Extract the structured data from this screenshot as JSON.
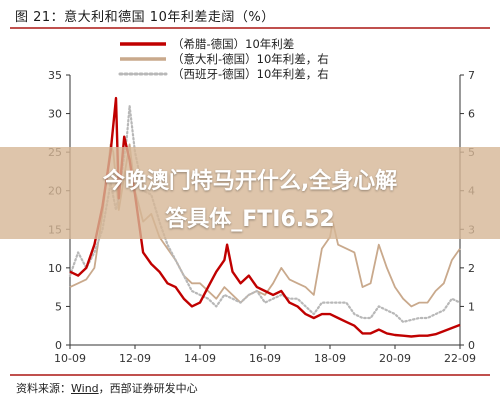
{
  "title": "图 21：意大利和德国 10年利差走阔（%）",
  "banner": {
    "line1": "今晚澳门特马开什么,全身心解",
    "line2": "答具体_FTI6.52"
  },
  "source": {
    "prefix": "资料来源：",
    "name": "Wind",
    "suffix": "，西部证券研发中心"
  },
  "chart_data": {
    "type": "line",
    "x_ticks": [
      "10-09",
      "12-09",
      "14-09",
      "16-09",
      "18-09",
      "20-09",
      "22-09"
    ],
    "y_left": {
      "lim": [
        0,
        35
      ],
      "ticks": [
        0,
        5,
        10,
        15,
        20,
        25,
        30,
        35
      ]
    },
    "y_right": {
      "lim": [
        0,
        7
      ],
      "ticks": [
        0,
        1,
        2,
        3,
        4,
        5,
        6,
        7
      ]
    },
    "grid": false,
    "legend_position": "top",
    "series": [
      {
        "name": "（希腊-德国）10年利差",
        "axis": "left",
        "color": "#c00000",
        "style": "solid",
        "points": [
          [
            "10-09",
            9.5
          ],
          [
            "10-12",
            9.0
          ],
          [
            "11-03",
            10.0
          ],
          [
            "11-06",
            13.0
          ],
          [
            "11-09",
            18.0
          ],
          [
            "11-12",
            25.0
          ],
          [
            "12-02",
            32.0
          ],
          [
            "12-03",
            19.0
          ],
          [
            "12-05",
            27.0
          ],
          [
            "12-07",
            24.0
          ],
          [
            "12-09",
            19.5
          ],
          [
            "12-12",
            12.0
          ],
          [
            "13-03",
            10.5
          ],
          [
            "13-06",
            9.5
          ],
          [
            "13-09",
            8.0
          ],
          [
            "13-12",
            7.5
          ],
          [
            "14-03",
            6.0
          ],
          [
            "14-06",
            5.0
          ],
          [
            "14-09",
            5.5
          ],
          [
            "14-12",
            7.5
          ],
          [
            "15-03",
            9.5
          ],
          [
            "15-06",
            11.0
          ],
          [
            "15-07",
            13.0
          ],
          [
            "15-09",
            9.5
          ],
          [
            "15-12",
            8.0
          ],
          [
            "16-03",
            9.0
          ],
          [
            "16-06",
            7.5
          ],
          [
            "16-09",
            7.0
          ],
          [
            "16-12",
            6.5
          ],
          [
            "17-03",
            7.0
          ],
          [
            "17-06",
            5.5
          ],
          [
            "17-09",
            5.0
          ],
          [
            "17-12",
            4.0
          ],
          [
            "18-03",
            3.5
          ],
          [
            "18-06",
            4.0
          ],
          [
            "18-09",
            4.0
          ],
          [
            "18-12",
            3.5
          ],
          [
            "19-03",
            3.0
          ],
          [
            "19-06",
            2.5
          ],
          [
            "19-09",
            1.5
          ],
          [
            "19-12",
            1.5
          ],
          [
            "20-03",
            2.0
          ],
          [
            "20-06",
            1.5
          ],
          [
            "20-09",
            1.3
          ],
          [
            "20-12",
            1.2
          ],
          [
            "21-03",
            1.1
          ],
          [
            "21-06",
            1.2
          ],
          [
            "21-09",
            1.2
          ],
          [
            "21-12",
            1.4
          ],
          [
            "22-03",
            1.8
          ],
          [
            "22-06",
            2.2
          ],
          [
            "22-09",
            2.6
          ]
        ]
      },
      {
        "name": "（意大利-德国）10年利差，右",
        "axis": "right",
        "color": "#c9a98c",
        "style": "solid",
        "points": [
          [
            "10-09",
            1.5
          ],
          [
            "10-12",
            1.6
          ],
          [
            "11-03",
            1.7
          ],
          [
            "11-06",
            2.0
          ],
          [
            "11-09",
            3.4
          ],
          [
            "11-12",
            5.2
          ],
          [
            "12-01",
            5.0
          ],
          [
            "12-03",
            3.5
          ],
          [
            "12-06",
            4.8
          ],
          [
            "12-07",
            5.2
          ],
          [
            "12-09",
            4.0
          ],
          [
            "12-12",
            3.2
          ],
          [
            "13-03",
            3.4
          ],
          [
            "13-06",
            2.8
          ],
          [
            "13-09",
            2.5
          ],
          [
            "13-12",
            2.2
          ],
          [
            "14-03",
            1.8
          ],
          [
            "14-06",
            1.6
          ],
          [
            "14-09",
            1.6
          ],
          [
            "14-12",
            1.4
          ],
          [
            "15-03",
            1.2
          ],
          [
            "15-06",
            1.5
          ],
          [
            "15-09",
            1.3
          ],
          [
            "15-12",
            1.1
          ],
          [
            "16-03",
            1.3
          ],
          [
            "16-06",
            1.4
          ],
          [
            "16-09",
            1.3
          ],
          [
            "16-12",
            1.6
          ],
          [
            "17-03",
            2.0
          ],
          [
            "17-06",
            1.7
          ],
          [
            "17-09",
            1.6
          ],
          [
            "17-12",
            1.5
          ],
          [
            "18-03",
            1.3
          ],
          [
            "18-06",
            2.5
          ],
          [
            "18-09",
            2.8
          ],
          [
            "18-10",
            3.2
          ],
          [
            "18-12",
            2.6
          ],
          [
            "19-03",
            2.5
          ],
          [
            "19-06",
            2.4
          ],
          [
            "19-09",
            1.5
          ],
          [
            "19-12",
            1.6
          ],
          [
            "20-03",
            2.6
          ],
          [
            "20-06",
            2.0
          ],
          [
            "20-09",
            1.5
          ],
          [
            "20-12",
            1.2
          ],
          [
            "21-03",
            1.0
          ],
          [
            "21-06",
            1.1
          ],
          [
            "21-09",
            1.1
          ],
          [
            "21-12",
            1.4
          ],
          [
            "22-03",
            1.6
          ],
          [
            "22-06",
            2.2
          ],
          [
            "22-09",
            2.5
          ]
        ]
      },
      {
        "name": "（西班牙-德国）10年利差，右",
        "axis": "right",
        "color": "#b8b8b8",
        "style": "dotted",
        "points": [
          [
            "10-09",
            1.8
          ],
          [
            "10-12",
            2.4
          ],
          [
            "11-03",
            2.0
          ],
          [
            "11-06",
            2.4
          ],
          [
            "11-09",
            3.0
          ],
          [
            "11-12",
            4.2
          ],
          [
            "12-02",
            3.5
          ],
          [
            "12-03",
            3.9
          ],
          [
            "12-06",
            5.4
          ],
          [
            "12-07",
            6.2
          ],
          [
            "12-09",
            5.0
          ],
          [
            "12-12",
            4.0
          ],
          [
            "13-03",
            3.9
          ],
          [
            "13-06",
            3.2
          ],
          [
            "13-09",
            2.6
          ],
          [
            "13-12",
            2.2
          ],
          [
            "14-03",
            1.8
          ],
          [
            "14-06",
            1.4
          ],
          [
            "14-09",
            1.3
          ],
          [
            "14-12",
            1.2
          ],
          [
            "15-03",
            1.0
          ],
          [
            "15-06",
            1.3
          ],
          [
            "15-09",
            1.2
          ],
          [
            "15-12",
            1.1
          ],
          [
            "16-03",
            1.3
          ],
          [
            "16-06",
            1.4
          ],
          [
            "16-09",
            1.1
          ],
          [
            "16-12",
            1.2
          ],
          [
            "17-03",
            1.3
          ],
          [
            "17-06",
            1.2
          ],
          [
            "17-09",
            1.2
          ],
          [
            "17-12",
            1.0
          ],
          [
            "18-03",
            0.8
          ],
          [
            "18-06",
            1.1
          ],
          [
            "18-09",
            1.1
          ],
          [
            "18-12",
            1.1
          ],
          [
            "19-03",
            1.1
          ],
          [
            "19-06",
            0.8
          ],
          [
            "19-09",
            0.7
          ],
          [
            "19-12",
            0.7
          ],
          [
            "20-03",
            1.0
          ],
          [
            "20-06",
            0.9
          ],
          [
            "20-09",
            0.8
          ],
          [
            "20-12",
            0.6
          ],
          [
            "21-03",
            0.65
          ],
          [
            "21-06",
            0.7
          ],
          [
            "21-09",
            0.7
          ],
          [
            "21-12",
            0.8
          ],
          [
            "22-03",
            0.9
          ],
          [
            "22-06",
            1.2
          ],
          [
            "22-09",
            1.1
          ]
        ]
      }
    ]
  }
}
